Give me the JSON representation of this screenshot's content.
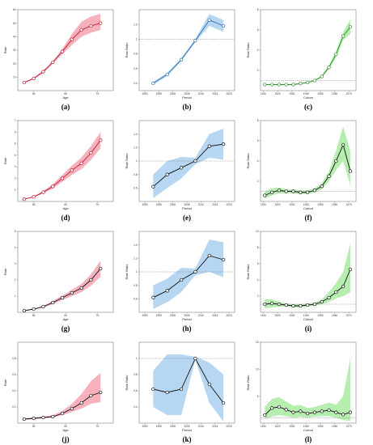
{
  "colors": {
    "age_band": "#f4a3b0",
    "age_line": "#c0182e",
    "period_band": "#a9cff0",
    "period_line": "#2f6fb0",
    "cohort_band": "#a8eba0",
    "cohort_line": "#2b8a2b",
    "black_line": "#111111",
    "ref_line": "#888888"
  },
  "chart_data": [
    {
      "id": "a",
      "panel_label": "(a)",
      "type": "line",
      "kind": "age",
      "xlabel": "Age",
      "ylabel": "Rate",
      "xlim": [
        50,
        80
      ],
      "ylim": [
        0,
        60
      ],
      "xticks": [
        55,
        65,
        75
      ],
      "yticks": [
        10,
        20,
        30,
        40,
        50,
        60
      ],
      "x": [
        52,
        55,
        58,
        61,
        64,
        67,
        70,
        73,
        76
      ],
      "values": [
        6,
        9,
        14,
        21,
        29,
        38,
        45,
        48,
        50
      ],
      "lower": [
        5.5,
        8.5,
        13,
        20,
        27,
        34,
        40,
        43,
        45
      ],
      "upper": [
        6.5,
        9.5,
        15,
        22,
        31,
        42,
        51,
        55,
        57
      ],
      "line_style": "colored",
      "ref": null
    },
    {
      "id": "b",
      "panel_label": "(b)",
      "type": "line",
      "kind": "period",
      "xlabel": "Period",
      "ylabel": "Rate Ratio",
      "xlim": [
        1988,
        2022
      ],
      "ylim": [
        0.3,
        1.4
      ],
      "xticks": [
        1990,
        1995,
        2000,
        2005,
        2010,
        2015,
        2020
      ],
      "yticks": [
        0.4,
        0.6,
        0.8,
        1.0,
        1.2
      ],
      "x": [
        1993,
        1998,
        2003,
        2008,
        2013,
        2018
      ],
      "values": [
        0.4,
        0.52,
        0.72,
        0.98,
        1.26,
        1.18
      ],
      "lower": [
        0.38,
        0.5,
        0.7,
        0.96,
        1.18,
        1.1
      ],
      "upper": [
        0.42,
        0.54,
        0.74,
        1.0,
        1.34,
        1.26
      ],
      "line_style": "colored",
      "ref": 1.0
    },
    {
      "id": "c",
      "panel_label": "(c)",
      "type": "line",
      "kind": "cohort",
      "xlabel": "Cohort",
      "ylabel": "Rate Ratio",
      "xlim": [
        1908,
        1975
      ],
      "ylim": [
        0,
        8
      ],
      "xticks": [
        1910,
        1920,
        1930,
        1940,
        1950,
        1960,
        1970
      ],
      "yticks": [
        2,
        4,
        6,
        8
      ],
      "x": [
        1911,
        1916,
        1921,
        1926,
        1931,
        1936,
        1941,
        1946,
        1951,
        1956,
        1961,
        1966,
        1971
      ],
      "values": [
        0.6,
        0.6,
        0.6,
        0.6,
        0.6,
        0.7,
        0.8,
        1.0,
        1.4,
        2.3,
        3.6,
        5.4,
        6.3
      ],
      "lower": [
        0.55,
        0.55,
        0.55,
        0.55,
        0.55,
        0.65,
        0.75,
        0.95,
        1.3,
        2.1,
        3.3,
        5.0,
        5.6
      ],
      "upper": [
        0.65,
        0.65,
        0.65,
        0.65,
        0.65,
        0.75,
        0.85,
        1.05,
        1.5,
        2.5,
        3.9,
        5.8,
        7.0
      ],
      "line_style": "colored",
      "ref": 1.0
    },
    {
      "id": "d",
      "panel_label": "(d)",
      "type": "line",
      "kind": "age",
      "xlabel": "Age",
      "ylabel": "Rate",
      "xlim": [
        50,
        80
      ],
      "ylim": [
        0,
        7
      ],
      "xticks": [
        55,
        65,
        75
      ],
      "yticks": [
        1,
        2,
        3,
        4,
        5,
        6,
        7
      ],
      "x": [
        52,
        55,
        58,
        61,
        64,
        67,
        70,
        73,
        76
      ],
      "values": [
        0.2,
        0.4,
        0.8,
        1.3,
        2.0,
        2.7,
        3.3,
        4.2,
        5.3
      ],
      "lower": [
        0.18,
        0.36,
        0.7,
        1.1,
        1.7,
        2.3,
        2.8,
        3.6,
        4.6
      ],
      "upper": [
        0.22,
        0.44,
        0.9,
        1.5,
        2.3,
        3.1,
        3.8,
        4.8,
        6.0
      ],
      "line_style": "colored",
      "ref": null
    },
    {
      "id": "e",
      "panel_label": "(e)",
      "type": "line",
      "kind": "period",
      "xlabel": "Period",
      "ylabel": "Rate Ratio",
      "xlim": [
        1988,
        2022
      ],
      "ylim": [
        0.4,
        1.6
      ],
      "xticks": [
        1990,
        1995,
        2000,
        2005,
        2010,
        2015,
        2020
      ],
      "yticks": [
        0.6,
        0.8,
        1.0,
        1.2,
        1.4
      ],
      "x": [
        1993,
        1998,
        2003,
        2008,
        2013,
        2018
      ],
      "values": [
        0.62,
        0.8,
        0.9,
        1.0,
        1.22,
        1.25
      ],
      "lower": [
        0.45,
        0.6,
        0.74,
        0.95,
        1.05,
        1.02
      ],
      "upper": [
        0.8,
        1.0,
        1.06,
        1.05,
        1.4,
        1.48
      ],
      "line_style": "black",
      "ref": 1.0
    },
    {
      "id": "f",
      "panel_label": "(f)",
      "type": "line",
      "kind": "cohort",
      "xlabel": "Cohort",
      "ylabel": "Rate Ratio",
      "xlim": [
        1908,
        1975
      ],
      "ylim": [
        0,
        8
      ],
      "xticks": [
        1910,
        1920,
        1930,
        1940,
        1950,
        1960,
        1970
      ],
      "yticks": [
        2,
        4,
        6,
        8
      ],
      "x": [
        1911,
        1916,
        1921,
        1926,
        1931,
        1936,
        1941,
        1946,
        1951,
        1956,
        1961,
        1966,
        1971
      ],
      "values": [
        0.6,
        0.9,
        1.1,
        1.0,
        1.0,
        0.9,
        0.9,
        1.1,
        1.5,
        2.5,
        4.0,
        5.6,
        3.0
      ],
      "lower": [
        0.3,
        0.6,
        0.8,
        0.8,
        0.8,
        0.7,
        0.75,
        0.9,
        1.2,
        2.0,
        3.1,
        4.0,
        1.6
      ],
      "upper": [
        1.0,
        1.3,
        1.4,
        1.2,
        1.2,
        1.1,
        1.1,
        1.3,
        1.8,
        3.0,
        5.0,
        7.4,
        5.0
      ],
      "line_style": "black",
      "ref": 1.0
    },
    {
      "id": "g",
      "panel_label": "(g)",
      "type": "line",
      "kind": "age",
      "xlabel": "Age",
      "ylabel": "Rate",
      "xlim": [
        50,
        80
      ],
      "ylim": [
        0,
        5
      ],
      "xticks": [
        55,
        65,
        75
      ],
      "yticks": [
        1,
        2,
        3,
        4,
        5
      ],
      "x": [
        52,
        55,
        58,
        61,
        64,
        67,
        70,
        73,
        76
      ],
      "values": [
        0.1,
        0.2,
        0.35,
        0.6,
        0.9,
        1.2,
        1.5,
        2.0,
        2.7
      ],
      "lower": [
        0.08,
        0.17,
        0.3,
        0.5,
        0.76,
        1.0,
        1.25,
        1.65,
        2.2
      ],
      "upper": [
        0.12,
        0.23,
        0.4,
        0.7,
        1.04,
        1.4,
        1.75,
        2.35,
        3.2
      ],
      "line_style": "black",
      "ref": null
    },
    {
      "id": "h",
      "panel_label": "(h)",
      "type": "line",
      "kind": "period",
      "xlabel": "Period",
      "ylabel": "Rate Ratio",
      "xlim": [
        1988,
        2022
      ],
      "ylim": [
        0.4,
        1.6
      ],
      "xticks": [
        1990,
        1995,
        2000,
        2005,
        2010,
        2015,
        2020
      ],
      "yticks": [
        0.6,
        0.8,
        1.0,
        1.2,
        1.4
      ],
      "x": [
        1993,
        1998,
        2003,
        2008,
        2013,
        2018
      ],
      "values": [
        0.62,
        0.72,
        0.88,
        1.0,
        1.24,
        1.18
      ],
      "lower": [
        0.45,
        0.55,
        0.7,
        0.95,
        1.0,
        0.92
      ],
      "upper": [
        0.8,
        0.9,
        1.06,
        1.05,
        1.48,
        1.44
      ],
      "line_style": "black",
      "ref": 1.0
    },
    {
      "id": "i",
      "panel_label": "(i)",
      "type": "line",
      "kind": "cohort",
      "xlabel": "Cohort",
      "ylabel": "Rate Ratio",
      "xlim": [
        1908,
        1975
      ],
      "ylim": [
        0,
        10
      ],
      "xticks": [
        1910,
        1920,
        1930,
        1940,
        1950,
        1960,
        1970
      ],
      "yticks": [
        2,
        4,
        6,
        8,
        10
      ],
      "x": [
        1911,
        1916,
        1921,
        1926,
        1931,
        1936,
        1941,
        1946,
        1951,
        1956,
        1961,
        1966,
        1971
      ],
      "values": [
        1.0,
        1.1,
        1.0,
        0.9,
        0.8,
        0.8,
        0.9,
        1.0,
        1.3,
        1.8,
        2.5,
        3.2,
        5.3
      ],
      "lower": [
        0.5,
        0.6,
        0.7,
        0.7,
        0.6,
        0.6,
        0.7,
        0.8,
        1.0,
        1.3,
        1.7,
        2.0,
        2.5
      ],
      "upper": [
        1.6,
        1.6,
        1.3,
        1.1,
        1.0,
        1.0,
        1.1,
        1.2,
        1.6,
        2.5,
        3.6,
        5.0,
        8.5
      ],
      "line_style": "black",
      "ref": 1.0
    },
    {
      "id": "j",
      "panel_label": "(j)",
      "type": "line",
      "kind": "age",
      "xlabel": "Age",
      "ylabel": "Rate",
      "xlim": [
        50,
        80
      ],
      "ylim": [
        0,
        1.0
      ],
      "xticks": [
        55,
        65,
        75
      ],
      "yticks": [
        0.2,
        0.4,
        0.6,
        0.8
      ],
      "x": [
        52,
        55,
        58,
        61,
        64,
        67,
        70,
        73,
        76
      ],
      "values": [
        0.05,
        0.06,
        0.07,
        0.08,
        0.12,
        0.18,
        0.25,
        0.34,
        0.38
      ],
      "lower": [
        0.04,
        0.05,
        0.06,
        0.07,
        0.1,
        0.14,
        0.18,
        0.24,
        0.26
      ],
      "upper": [
        0.06,
        0.07,
        0.08,
        0.1,
        0.15,
        0.24,
        0.36,
        0.52,
        0.62
      ],
      "line_style": "black",
      "ref": null
    },
    {
      "id": "k",
      "panel_label": "(k)",
      "type": "line",
      "kind": "period",
      "xlabel": "Period",
      "ylabel": "Rate Ratio",
      "xlim": [
        1988,
        2022
      ],
      "ylim": [
        0.2,
        1.2
      ],
      "xticks": [
        1990,
        1995,
        2000,
        2005,
        2010,
        2015,
        2020
      ],
      "yticks": [
        0.4,
        0.6,
        0.8,
        1.0
      ],
      "x": [
        1993,
        1998,
        2003,
        2008,
        2013,
        2018
      ],
      "values": [
        0.62,
        0.58,
        0.62,
        1.0,
        0.68,
        0.45
      ],
      "lower": [
        0.4,
        0.3,
        0.3,
        0.98,
        0.45,
        0.22
      ],
      "upper": [
        0.85,
        1.05,
        1.05,
        1.02,
        0.95,
        0.8
      ],
      "line_style": "black",
      "ref": 1.0
    },
    {
      "id": "l",
      "panel_label": "(l)",
      "type": "line",
      "kind": "cohort",
      "xlabel": "Cohort",
      "ylabel": "Rate Ratio",
      "xlim": [
        1908,
        1975
      ],
      "ylim": [
        0,
        15
      ],
      "xticks": [
        1910,
        1920,
        1930,
        1940,
        1950,
        1960,
        1970
      ],
      "yticks": [
        5,
        10,
        15
      ],
      "x": [
        1911,
        1916,
        1921,
        1926,
        1931,
        1936,
        1941,
        1946,
        1951,
        1956,
        1961,
        1966,
        1971
      ],
      "values": [
        1.5,
        2.8,
        3.0,
        2.5,
        2.0,
        2.2,
        1.8,
        2.0,
        2.2,
        2.4,
        2.0,
        1.6,
        2.0
      ],
      "lower": [
        0.8,
        1.2,
        1.5,
        1.3,
        1.0,
        1.2,
        1.0,
        1.2,
        1.3,
        1.3,
        1.0,
        0.6,
        0.4
      ],
      "upper": [
        3.0,
        4.5,
        4.8,
        4.0,
        3.2,
        3.4,
        2.8,
        3.0,
        3.4,
        3.8,
        3.4,
        5.0,
        12.0
      ],
      "line_style": "black",
      "ref": 1.0
    }
  ]
}
